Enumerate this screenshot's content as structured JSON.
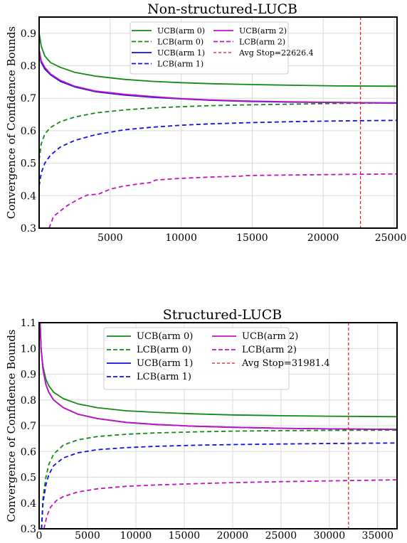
{
  "colors": {
    "green": "#138a13",
    "blue": "#1010e0",
    "magenta": "#c014c0",
    "red": "#e8141e",
    "grid": "#d9d9d9"
  },
  "chart_data": [
    {
      "type": "line",
      "title": "Non-structured-LUCB",
      "ylabel": "Convergence of Confidence Bounds",
      "xlabel": "",
      "xlim": [
        0,
        25200
      ],
      "ylim": [
        0.3,
        0.95
      ],
      "xticks": [
        5000,
        10000,
        15000,
        20000,
        25000
      ],
      "xtick_labels": [
        "5000",
        "10000",
        "15000",
        "20000",
        "25000"
      ],
      "yticks": [
        0.3,
        0.4,
        0.5,
        0.6,
        0.7,
        0.8,
        0.9
      ],
      "ytick_labels": [
        "0.3",
        "0.4",
        "0.5",
        "0.6",
        "0.7",
        "0.8",
        "0.9"
      ],
      "grid": true,
      "legend": "top-center",
      "legend_columns": 2,
      "vline": {
        "x": 22626.4,
        "label": "Avg Stop=22626.4"
      },
      "series": [
        {
          "name": "UCB(arm 0)",
          "color": "green",
          "dash": "solid",
          "x": [
            0,
            150,
            400,
            800,
            1500,
            2500,
            4000,
            6000,
            8000,
            10000,
            12000,
            15000,
            18000,
            21000,
            25200
          ],
          "y": [
            0.9,
            0.86,
            0.83,
            0.81,
            0.795,
            0.78,
            0.768,
            0.758,
            0.752,
            0.748,
            0.745,
            0.742,
            0.74,
            0.738,
            0.737
          ]
        },
        {
          "name": "LCB(arm 0)",
          "color": "green",
          "dash": "dashed",
          "x": [
            0,
            150,
            400,
            800,
            1500,
            2500,
            4000,
            6000,
            8000,
            10000,
            12000,
            15000,
            18000,
            21000,
            25200
          ],
          "y": [
            0.51,
            0.56,
            0.59,
            0.61,
            0.628,
            0.642,
            0.655,
            0.664,
            0.67,
            0.674,
            0.677,
            0.68,
            0.682,
            0.684,
            0.686
          ]
        },
        {
          "name": "UCB(arm 1)",
          "color": "blue",
          "dash": "solid",
          "x": [
            0,
            150,
            400,
            800,
            1500,
            2500,
            4000,
            6000,
            8000,
            10000,
            12000,
            15000,
            18000,
            21000,
            25200
          ],
          "y": [
            0.84,
            0.81,
            0.79,
            0.772,
            0.752,
            0.735,
            0.72,
            0.71,
            0.703,
            0.698,
            0.694,
            0.69,
            0.688,
            0.687,
            0.685
          ]
        },
        {
          "name": "LCB(arm 1)",
          "color": "blue",
          "dash": "dashed",
          "x": [
            0,
            150,
            400,
            800,
            1500,
            2500,
            4000,
            6000,
            8000,
            10000,
            12000,
            15000,
            18000,
            21000,
            25200
          ],
          "y": [
            0.43,
            0.47,
            0.5,
            0.525,
            0.55,
            0.57,
            0.588,
            0.603,
            0.611,
            0.617,
            0.621,
            0.625,
            0.628,
            0.63,
            0.632
          ]
        },
        {
          "name": "UCB(arm 2)",
          "color": "magenta",
          "dash": "solid",
          "x": [
            0,
            150,
            400,
            800,
            1500,
            2500,
            4000,
            6000,
            8000,
            10000,
            12000,
            15000,
            18000,
            21000,
            25200
          ],
          "y": [
            0.85,
            0.815,
            0.795,
            0.775,
            0.755,
            0.737,
            0.722,
            0.712,
            0.705,
            0.699,
            0.695,
            0.691,
            0.689,
            0.687,
            0.686
          ]
        },
        {
          "name": "LCB(arm 2)",
          "color": "magenta",
          "dash": "dashed",
          "x": [
            700,
            1000,
            1400,
            2000,
            2800,
            3400,
            4200,
            5000,
            5800,
            6800,
            7800,
            8200,
            9500,
            10800,
            12500,
            14200,
            14600,
            16500,
            18500,
            20500,
            22500,
            25200
          ],
          "y": [
            0.3,
            0.335,
            0.35,
            0.37,
            0.39,
            0.402,
            0.405,
            0.42,
            0.428,
            0.435,
            0.44,
            0.448,
            0.452,
            0.455,
            0.458,
            0.46,
            0.462,
            0.463,
            0.464,
            0.465,
            0.466,
            0.467
          ]
        }
      ]
    },
    {
      "type": "line",
      "title": "Structured-LUCB",
      "ylabel": "Convergence of Confidence Bounds",
      "xlabel": "",
      "xlim": [
        0,
        37000
      ],
      "ylim": [
        0.3,
        1.1
      ],
      "xticks": [
        0,
        5000,
        10000,
        15000,
        20000,
        25000,
        30000,
        35000
      ],
      "xtick_labels": [
        "0",
        "5000",
        "10000",
        "15000",
        "20000",
        "25000",
        "30000",
        "35000"
      ],
      "yticks": [
        0.3,
        0.4,
        0.5,
        0.6,
        0.7,
        0.8,
        0.9,
        1.0,
        1.1
      ],
      "ytick_labels": [
        "0.3",
        "0.4",
        "0.5",
        "0.6",
        "0.7",
        "0.8",
        "0.9",
        "1.0",
        "1.1"
      ],
      "grid": true,
      "legend": "top-center",
      "legend_columns": 2,
      "vline": {
        "x": 31981.4,
        "label": "Avg Stop=31981.4"
      },
      "series": [
        {
          "name": "UCB(arm 0)",
          "color": "green",
          "dash": "solid",
          "x": [
            100,
            200,
            400,
            700,
            1000,
            1500,
            2500,
            4000,
            6000,
            9000,
            12000,
            16000,
            20000,
            25000,
            30000,
            37000
          ],
          "y": [
            1.1,
            1.0,
            0.93,
            0.88,
            0.855,
            0.83,
            0.805,
            0.785,
            0.77,
            0.758,
            0.752,
            0.746,
            0.742,
            0.739,
            0.737,
            0.735
          ]
        },
        {
          "name": "LCB(arm 0)",
          "color": "green",
          "dash": "dashed",
          "x": [
            250,
            400,
            700,
            1000,
            1500,
            2500,
            4000,
            6000,
            9000,
            12000,
            16000,
            20000,
            25000,
            30000,
            37000
          ],
          "y": [
            0.3,
            0.42,
            0.5,
            0.55,
            0.59,
            0.625,
            0.645,
            0.658,
            0.667,
            0.672,
            0.676,
            0.679,
            0.681,
            0.682,
            0.683
          ]
        },
        {
          "name": "UCB(arm 1)",
          "color": "blue",
          "dash": "solid",
          "x": [
            100,
            200,
            400,
            700,
            1000,
            1500,
            2500,
            4000,
            6000,
            9000,
            12000,
            16000,
            20000,
            25000,
            30000,
            37000
          ],
          "y": [
            1.1,
            1.0,
            0.92,
            0.86,
            0.83,
            0.8,
            0.77,
            0.745,
            0.728,
            0.713,
            0.705,
            0.698,
            0.694,
            0.69,
            0.688,
            0.686
          ]
        },
        {
          "name": "LCB(arm 1)",
          "color": "blue",
          "dash": "dashed",
          "x": [
            250,
            400,
            700,
            1000,
            1500,
            2500,
            4000,
            6000,
            9000,
            12000,
            16000,
            20000,
            25000,
            30000,
            37000
          ],
          "y": [
            0.3,
            0.4,
            0.47,
            0.51,
            0.545,
            0.575,
            0.595,
            0.607,
            0.615,
            0.62,
            0.624,
            0.627,
            0.629,
            0.631,
            0.633
          ]
        },
        {
          "name": "UCB(arm 2)",
          "color": "magenta",
          "dash": "solid",
          "x": [
            100,
            200,
            400,
            700,
            1000,
            1500,
            2500,
            4000,
            6000,
            9000,
            12000,
            16000,
            20000,
            25000,
            30000,
            37000
          ],
          "y": [
            1.1,
            1.0,
            0.92,
            0.86,
            0.83,
            0.8,
            0.77,
            0.745,
            0.728,
            0.713,
            0.705,
            0.698,
            0.694,
            0.69,
            0.688,
            0.686
          ]
        },
        {
          "name": "LCB(arm 2)",
          "color": "magenta",
          "dash": "dashed",
          "x": [
            500,
            800,
            1200,
            1800,
            2500,
            4000,
            6000,
            9000,
            12000,
            16000,
            20000,
            25000,
            30000,
            37000
          ],
          "y": [
            0.3,
            0.35,
            0.385,
            0.41,
            0.425,
            0.443,
            0.455,
            0.465,
            0.47,
            0.475,
            0.479,
            0.483,
            0.486,
            0.49
          ]
        }
      ]
    }
  ]
}
